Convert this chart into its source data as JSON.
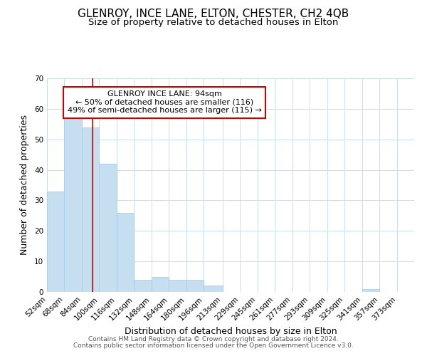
{
  "title": "GLENROY, INCE LANE, ELTON, CHESTER, CH2 4QB",
  "subtitle": "Size of property relative to detached houses in Elton",
  "xlabel": "Distribution of detached houses by size in Elton",
  "ylabel": "Number of detached properties",
  "bar_values": [
    33,
    58,
    54,
    42,
    26,
    4,
    5,
    4,
    4,
    2,
    0,
    0,
    0,
    0,
    0,
    0,
    0,
    0,
    1,
    0,
    0
  ],
  "bin_edges": [
    52,
    68,
    84,
    100,
    116,
    132,
    148,
    164,
    180,
    196,
    213,
    229,
    245,
    261,
    277,
    293,
    309,
    325,
    341,
    357,
    373,
    389
  ],
  "x_tick_labels": [
    "52sqm",
    "68sqm",
    "84sqm",
    "100sqm",
    "116sqm",
    "132sqm",
    "148sqm",
    "164sqm",
    "180sqm",
    "196sqm",
    "213sqm",
    "229sqm",
    "245sqm",
    "261sqm",
    "277sqm",
    "293sqm",
    "309sqm",
    "325sqm",
    "341sqm",
    "357sqm",
    "373sqm"
  ],
  "bar_color": "#c5dff0",
  "bar_edge_color": "#aacde8",
  "ylim": [
    0,
    70
  ],
  "yticks": [
    0,
    10,
    20,
    30,
    40,
    50,
    60,
    70
  ],
  "vline_x": 94,
  "vline_color": "#cc0000",
  "annotation_line1": "GLENROY INCE LANE: 94sqm",
  "annotation_line2": "← 50% of detached houses are smaller (116)",
  "annotation_line3": "49% of semi-detached houses are larger (115) →",
  "annotation_box_color": "#ffffff",
  "annotation_box_edge_color": "#cc0000",
  "footer_line1": "Contains HM Land Registry data © Crown copyright and database right 2024.",
  "footer_line2": "Contains public sector information licensed under the Open Government Licence v3.0.",
  "background_color": "#ffffff",
  "grid_color": "#c8dff0",
  "title_fontsize": 11,
  "subtitle_fontsize": 9.5,
  "axis_label_fontsize": 9,
  "tick_fontsize": 7.5,
  "annotation_fontsize": 8,
  "footer_fontsize": 6.5
}
